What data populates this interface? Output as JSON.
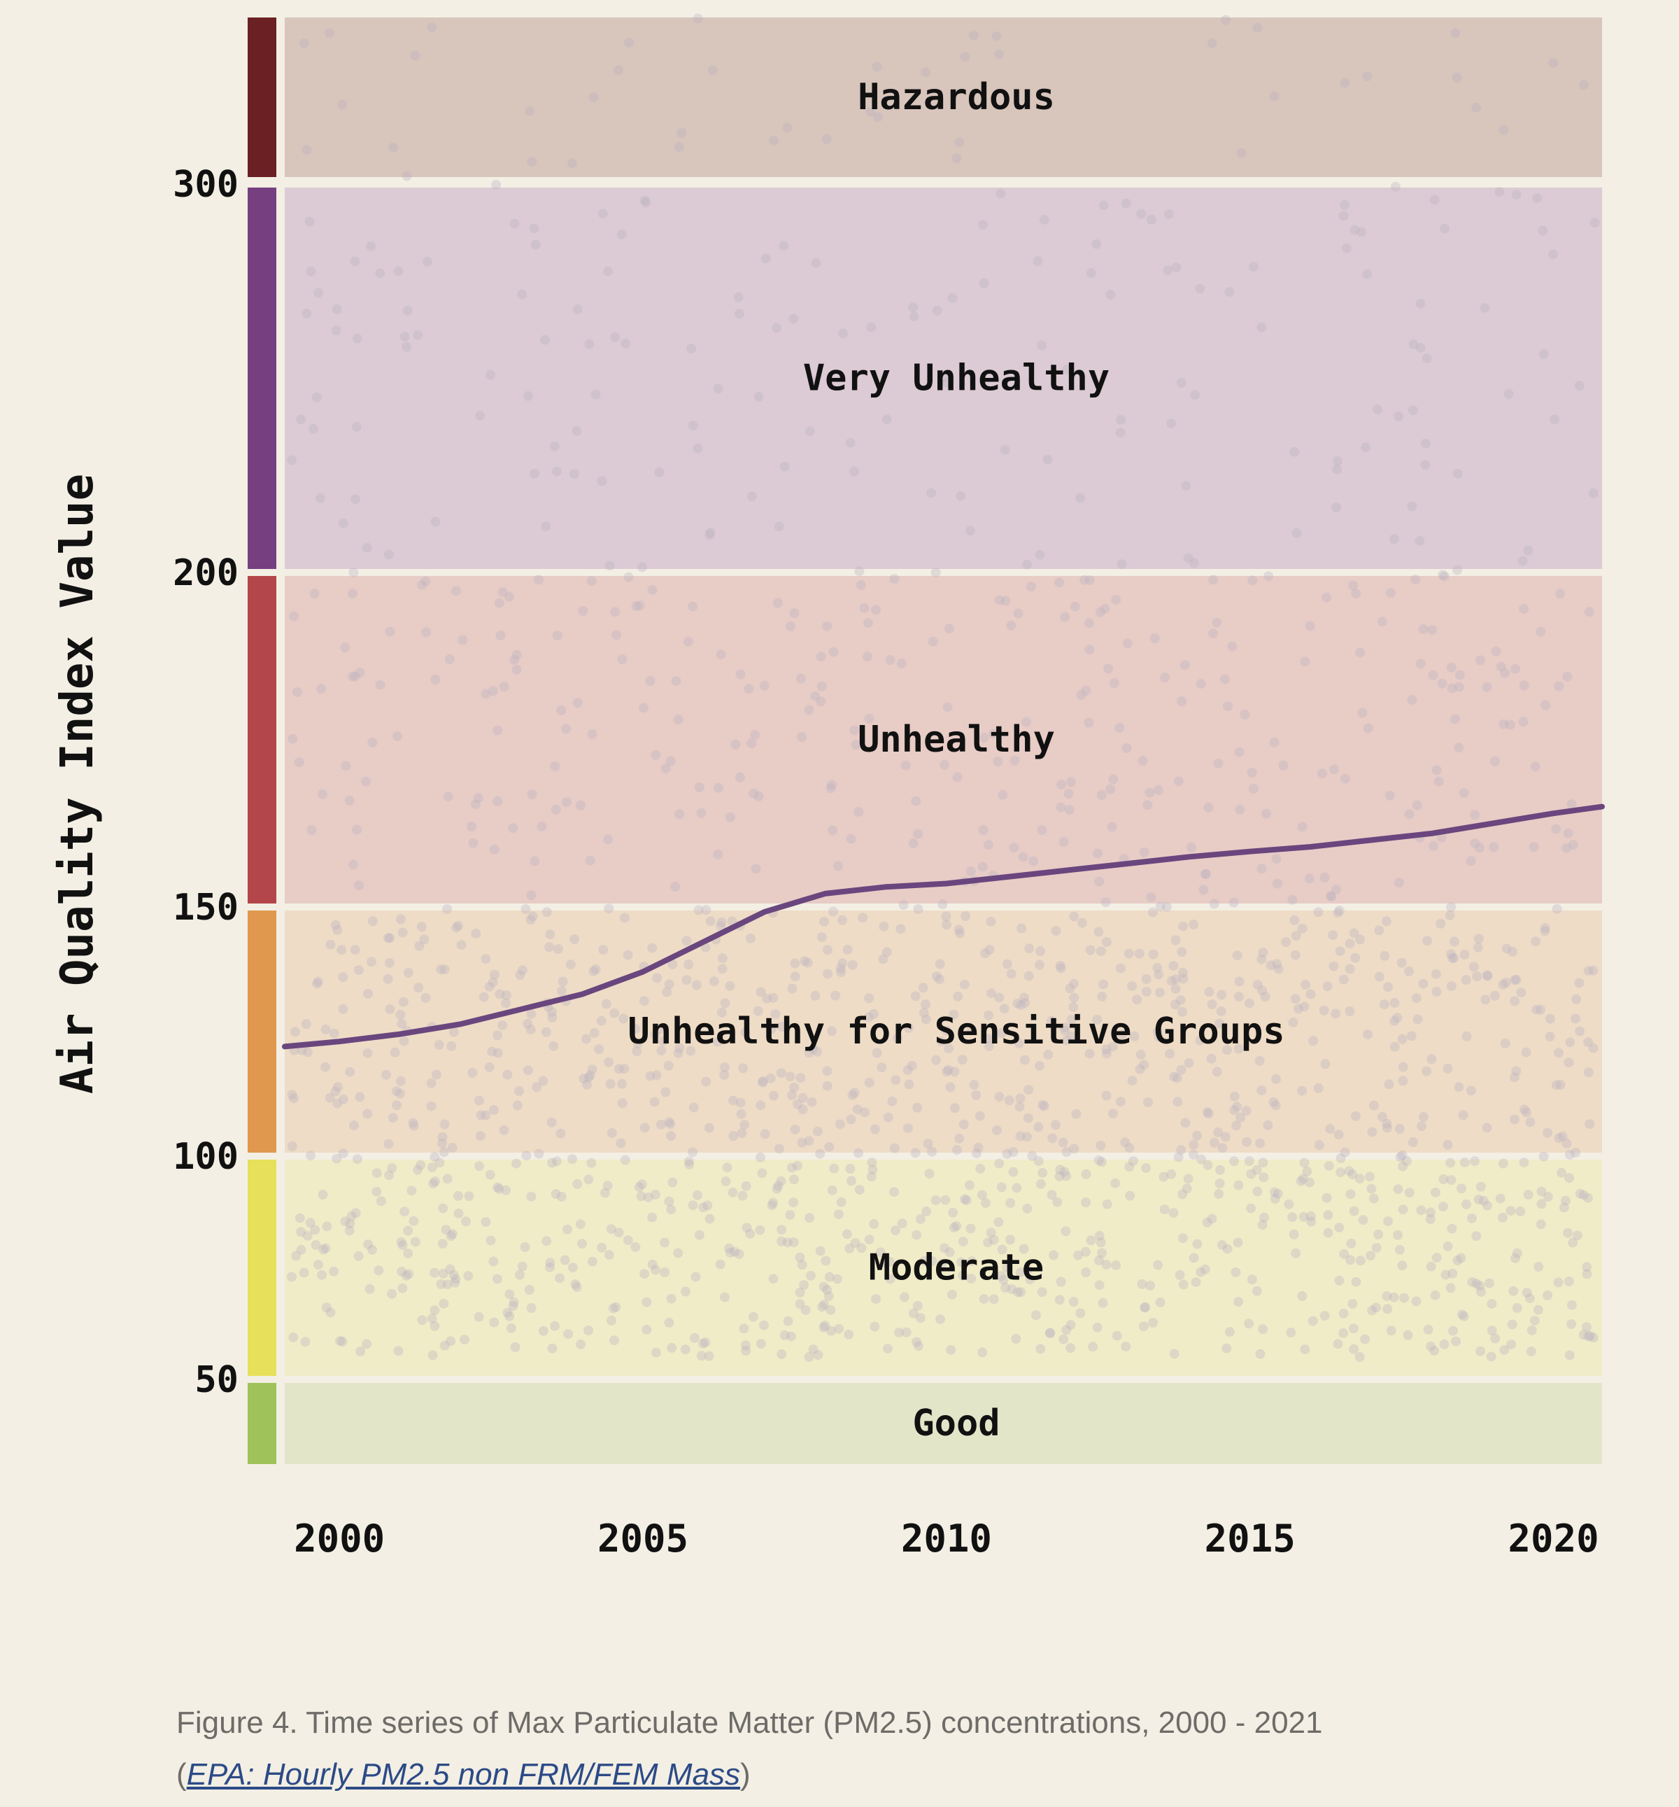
{
  "chart_data": {
    "type": "line",
    "title": "",
    "xlabel": "",
    "ylabel": "Air Quality Index Value",
    "x_ticks": [
      "2000",
      "2005",
      "2010",
      "2015",
      "2020"
    ],
    "y_ticks": [
      "50",
      "100",
      "150",
      "200",
      "300"
    ],
    "xlim": [
      1999.1,
      2020.8
    ],
    "grid": false,
    "bands": [
      {
        "name": "Good",
        "range": [
          0,
          50
        ],
        "color": "#a0c25a",
        "fill": "#e3e5c9"
      },
      {
        "name": "Moderate",
        "range": [
          50,
          100
        ],
        "color": "#e6e05a",
        "fill": "#f1ecc8"
      },
      {
        "name": "Unhealthy for Sensitive Groups",
        "range": [
          100,
          150
        ],
        "color": "#e0984e",
        "fill": "#eedcc6"
      },
      {
        "name": "Unhealthy",
        "range": [
          150,
          200
        ],
        "color": "#b3464a",
        "fill": "#e8ccc6"
      },
      {
        "name": "Very Unhealthy",
        "range": [
          200,
          300
        ],
        "color": "#763f80",
        "fill": "#dccbd4"
      },
      {
        "name": "Hazardous",
        "range": [
          300,
          null
        ],
        "color": "#6b2024",
        "fill": "#d8c5bc"
      }
    ],
    "series": [
      {
        "color": "#6a467e",
        "x": [
          1999.1,
          2000,
          2001,
          2002,
          2003,
          2004,
          2005,
          2006,
          2007,
          2008,
          2009,
          2010,
          2011,
          2012,
          2013,
          2014,
          2015,
          2016,
          2017,
          2018,
          2019,
          2020,
          2020.8
        ],
        "y": [
          122,
          123,
          124.5,
          126.5,
          129.5,
          132.5,
          137,
          143,
          149,
          152,
          153,
          153.5,
          154.5,
          155.5,
          156.5,
          157.5,
          158.3,
          159,
          160,
          161,
          162.5,
          164,
          165
        ]
      }
    ],
    "scatter_color": "#b9b3c0"
  },
  "caption": {
    "text": "Figure 4. Time series of Max Particulate Matter (PM2.5) concentrations, 2000 - 2021",
    "source_open": "(",
    "source_link": "EPA: Hourly PM2.5 non FRM/FEM Mass",
    "source_close": ")"
  }
}
